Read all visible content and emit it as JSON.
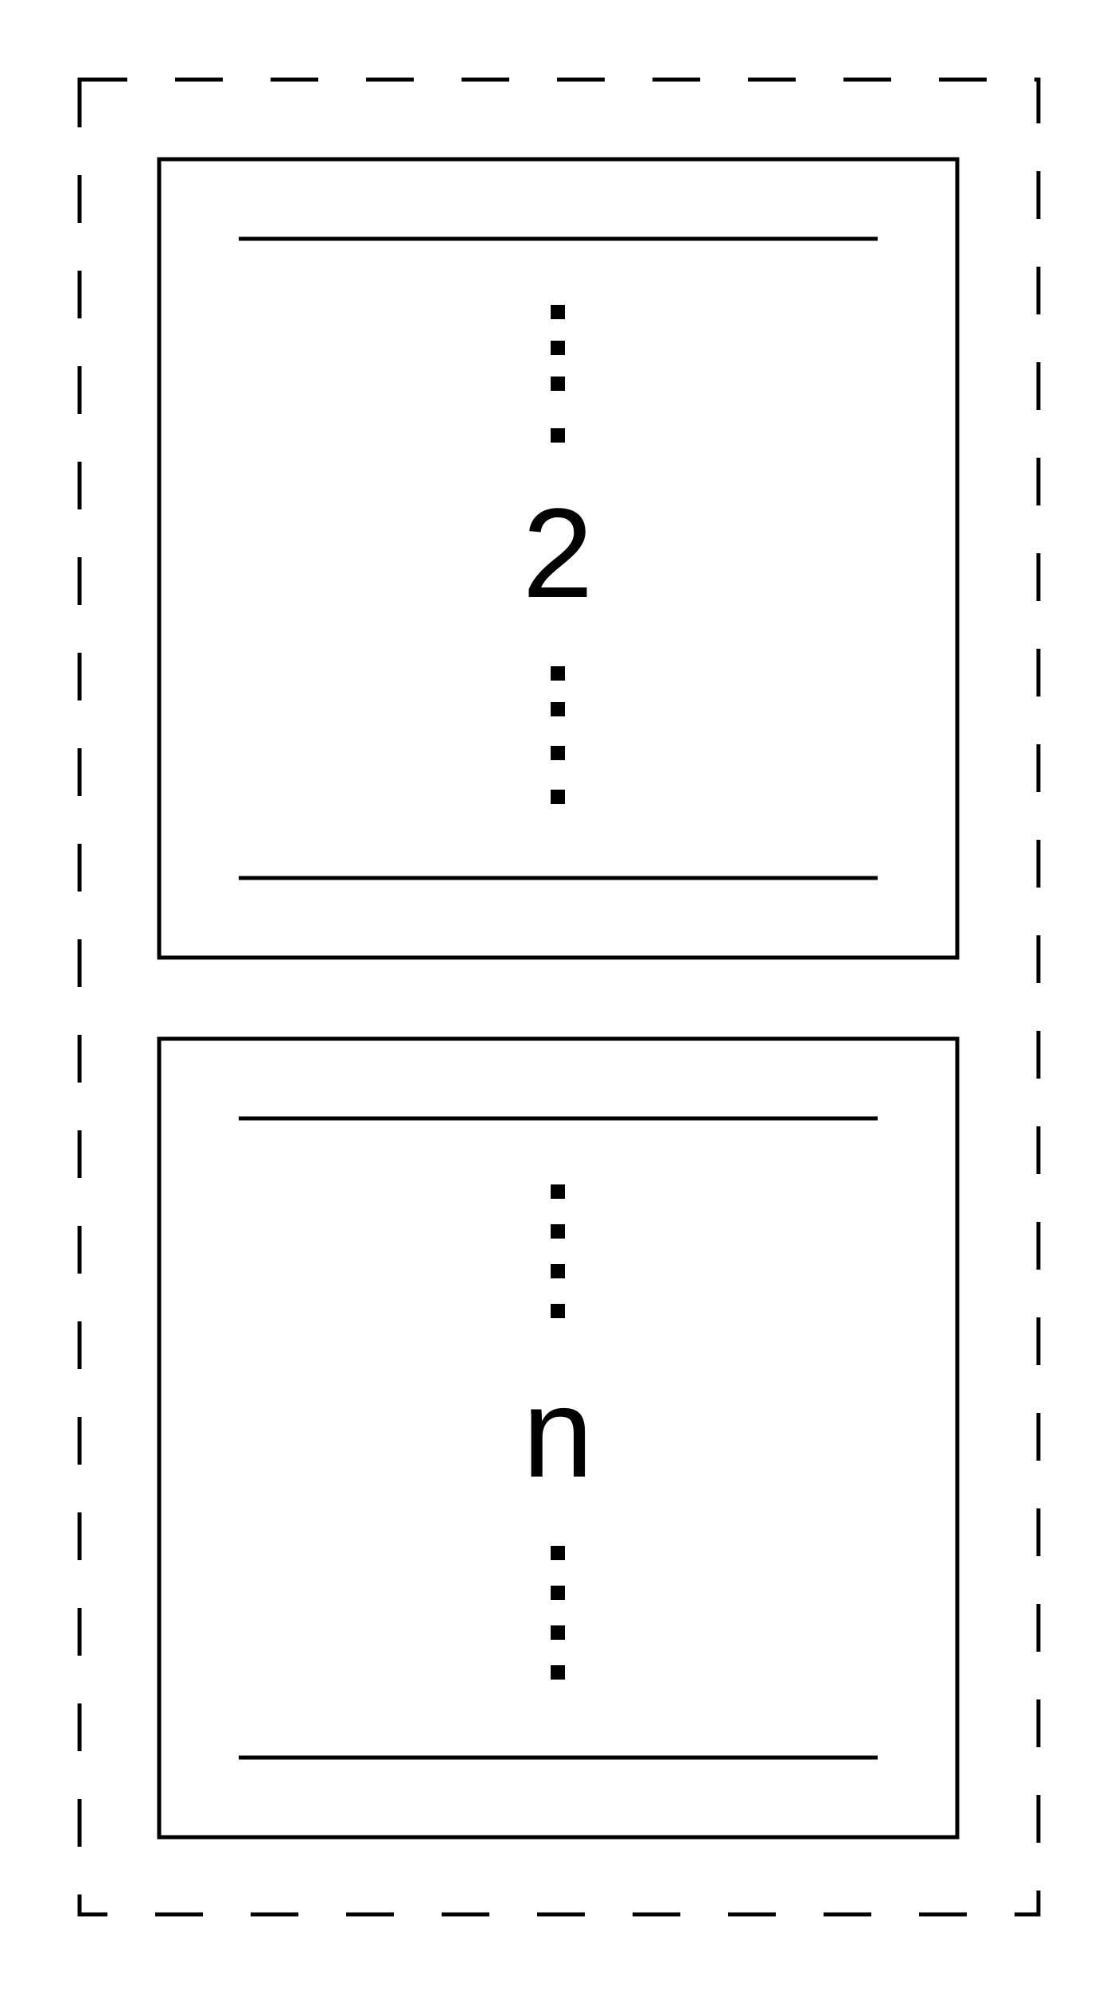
{
  "outer_container": {
    "style": "dashed",
    "stroke_color": "#000000"
  },
  "boxes": [
    {
      "label": "2",
      "ellipsis_above": "vertical-dots",
      "ellipsis_below": "vertical-dots"
    },
    {
      "label": "n",
      "ellipsis_above": "vertical-dots",
      "ellipsis_below": "vertical-dots"
    }
  ],
  "colors": {
    "stroke": "#000000",
    "background": "#ffffff"
  }
}
